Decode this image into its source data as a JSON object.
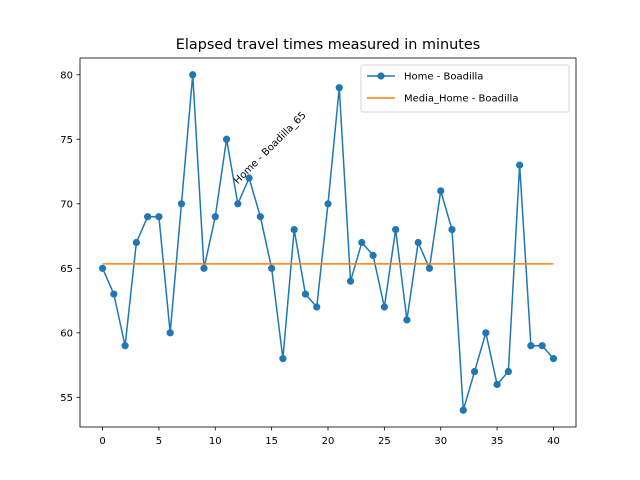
{
  "chart_data": {
    "type": "line",
    "title": "Elapsed travel times measured in minutes",
    "xlabel": "",
    "ylabel": "",
    "xlim": [
      -2,
      42
    ],
    "ylim": [
      52.7,
      81.3
    ],
    "x_ticks": [
      0,
      5,
      10,
      15,
      20,
      25,
      30,
      35,
      40
    ],
    "y_ticks": [
      55,
      60,
      65,
      70,
      75,
      80
    ],
    "grid": false,
    "legend_position": "top-right",
    "series": [
      {
        "name": "Home - Boadilla",
        "color": "#1f77b4",
        "marker": "circle",
        "x": [
          0,
          1,
          2,
          3,
          4,
          5,
          6,
          7,
          8,
          9,
          10,
          11,
          12,
          13,
          14,
          15,
          16,
          17,
          18,
          19,
          20,
          21,
          22,
          23,
          24,
          25,
          26,
          27,
          28,
          29,
          30,
          31,
          32,
          33,
          34,
          35,
          36,
          37,
          38,
          39,
          40
        ],
        "values": [
          65,
          63,
          59,
          67,
          69,
          69,
          60,
          70,
          80,
          65,
          69,
          75,
          70,
          72,
          69,
          65,
          58,
          68,
          63,
          62,
          70,
          79,
          64,
          67,
          66,
          62,
          68,
          61,
          67,
          65,
          71,
          68,
          54,
          57,
          60,
          56,
          57,
          73,
          59,
          59,
          58
        ]
      },
      {
        "name": "Media_Home - Boadilla",
        "color": "#ff7f0e",
        "marker": "none",
        "x": [
          0,
          40
        ],
        "values": [
          65.34,
          65.34
        ]
      }
    ],
    "annotations": [
      {
        "text": "Home - Boadilla_65",
        "x": 12,
        "y": 71.5,
        "rotation": 45
      }
    ]
  }
}
